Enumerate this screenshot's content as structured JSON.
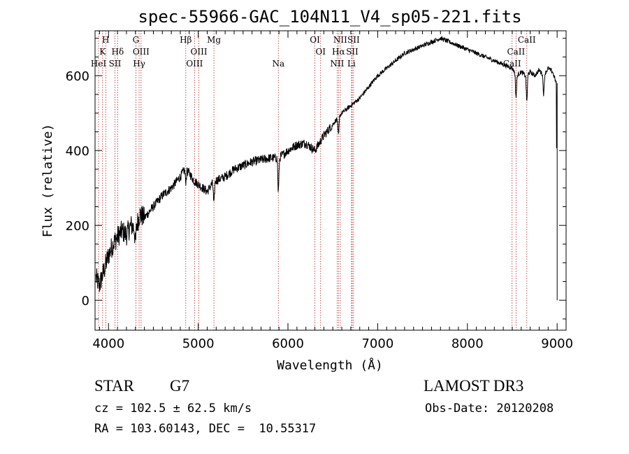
{
  "chart_data": {
    "type": "line",
    "title": "spec-55966-GAC_104N11_V4_sp05-221.fits",
    "xlabel": "Wavelength (Å)",
    "ylabel": "Flux (relative)",
    "xlim": [
      3850,
      9100
    ],
    "ylim": [
      -80,
      720
    ],
    "x_ticks": [
      4000,
      5000,
      6000,
      7000,
      8000,
      9000
    ],
    "x_tick_labels": [
      "4000",
      "5000",
      "6000",
      "7000",
      "8000",
      "9000"
    ],
    "y_ticks": [
      0,
      200,
      400,
      600
    ],
    "y_tick_labels": [
      "0",
      "200",
      "400",
      "600"
    ],
    "series": [
      {
        "name": "spectrum",
        "x": [
          3860,
          3900,
          3950,
          4000,
          4050,
          4100,
          4150,
          4200,
          4250,
          4300,
          4350,
          4400,
          4500,
          4600,
          4700,
          4800,
          4850,
          4900,
          4950,
          5000,
          5050,
          5100,
          5150,
          5200,
          5300,
          5400,
          5500,
          5600,
          5700,
          5800,
          5900,
          6000,
          6100,
          6200,
          6300,
          6400,
          6500,
          6563,
          6600,
          6700,
          6800,
          6900,
          7000,
          7100,
          7200,
          7300,
          7400,
          7500,
          7600,
          7700,
          7800,
          7900,
          8000,
          8100,
          8200,
          8300,
          8400,
          8500,
          8550,
          8600,
          8650,
          8700,
          8750,
          8800,
          8850,
          8900,
          8950,
          8990,
          9000
        ],
        "y": [
          60,
          40,
          80,
          120,
          150,
          170,
          185,
          175,
          200,
          190,
          230,
          220,
          250,
          280,
          300,
          330,
          350,
          340,
          320,
          310,
          300,
          290,
          310,
          320,
          330,
          350,
          360,
          370,
          375,
          380,
          380,
          400,
          415,
          420,
          400,
          440,
          470,
          490,
          500,
          520,
          540,
          570,
          600,
          620,
          640,
          660,
          670,
          680,
          690,
          700,
          690,
          680,
          670,
          660,
          650,
          640,
          630,
          620,
          600,
          610,
          600,
          610,
          600,
          615,
          600,
          620,
          610,
          580,
          0
        ]
      }
    ],
    "absorption_dips": [
      {
        "x": 4300,
        "depth": 40
      },
      {
        "x": 4861,
        "depth": 30
      },
      {
        "x": 5175,
        "depth": 60
      },
      {
        "x": 5893,
        "depth": 90
      },
      {
        "x": 6563,
        "depth": 50
      },
      {
        "x": 8542,
        "depth": 60
      },
      {
        "x": 8662,
        "depth": 70
      },
      {
        "x": 8850,
        "depth": 50
      }
    ],
    "lines": [
      {
        "label": "HeI",
        "x": 3889,
        "row": 3
      },
      {
        "label": "K",
        "x": 3934,
        "row": 2
      },
      {
        "label": "H",
        "x": 3969,
        "row": 1
      },
      {
        "label": "SII",
        "x": 4072,
        "row": 3
      },
      {
        "label": "Hδ",
        "x": 4102,
        "row": 2
      },
      {
        "label": "G",
        "x": 4305,
        "row": 1
      },
      {
        "label": "Hγ",
        "x": 4341,
        "row": 3
      },
      {
        "label": "OIII",
        "x": 4363,
        "row": 2
      },
      {
        "label": "Hβ",
        "x": 4861,
        "row": 1
      },
      {
        "label": "OIII",
        "x": 4959,
        "row": 3
      },
      {
        "label": "OIII",
        "x": 5007,
        "row": 2
      },
      {
        "label": "Mg",
        "x": 5175,
        "row": 1
      },
      {
        "label": "Na",
        "x": 5893,
        "row": 3
      },
      {
        "label": "OI",
        "x": 6300,
        "row": 1
      },
      {
        "label": "OI",
        "x": 6364,
        "row": 2
      },
      {
        "label": "NII",
        "x": 6548,
        "row": 3
      },
      {
        "label": "NII",
        "x": 6583,
        "row": 1
      },
      {
        "label": "Hα",
        "x": 6563,
        "row": 2
      },
      {
        "label": "SII",
        "x": 6716,
        "row": 2
      },
      {
        "label": "SII",
        "x": 6731,
        "row": 1
      },
      {
        "label": "Li",
        "x": 6708,
        "row": 3
      },
      {
        "label": "CaII",
        "x": 8498,
        "row": 3
      },
      {
        "label": "CaII",
        "x": 8542,
        "row": 2
      },
      {
        "label": "CaII",
        "x": 8662,
        "row": 1
      }
    ]
  },
  "info": {
    "object_class": "STAR",
    "subclass": "G7",
    "cz": "cz = 102.5 ± 62.5 km/s",
    "ra_dec": "RA = 103.60143, DEC =  10.55317",
    "survey": "LAMOST DR3",
    "obs_date": "Obs-Date: 20120208"
  }
}
